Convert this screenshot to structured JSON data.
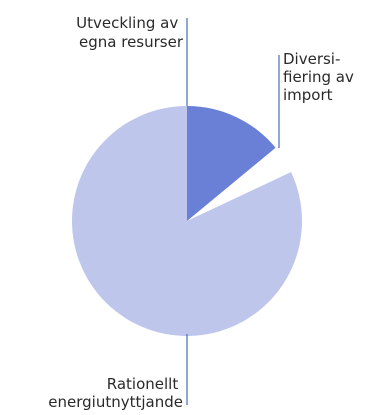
{
  "chart_data": {
    "type": "pie",
    "title": "",
    "slices": [
      {
        "label_lines": [
          "Utveckling av",
          "egna resurser"
        ],
        "value": 14,
        "color": "#6a80d6",
        "exploded": false
      },
      {
        "label_lines": [
          "Diversi-",
          "fiering av",
          "import"
        ],
        "value": 4,
        "color": "#ffffff",
        "exploded": true
      },
      {
        "label_lines": [
          "Rationellt",
          "energiutnyttjande"
        ],
        "value": 82,
        "color": "#bfc6ec",
        "exploded": false
      }
    ],
    "start_angle": "12 o'clock",
    "direction": "clockwise",
    "legend": "none"
  }
}
